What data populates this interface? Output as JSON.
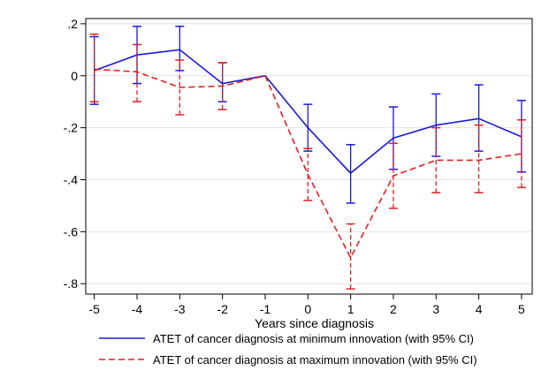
{
  "chart_data": {
    "type": "line",
    "title": "",
    "xlabel": "Years since diagnosis",
    "ylabel": "",
    "x": [
      -5,
      -4,
      -3,
      -2,
      -1,
      0,
      1,
      2,
      3,
      4,
      5
    ],
    "x_tick_labels": [
      "-5",
      "-4",
      "-3",
      "-2",
      "-1",
      "0",
      "1",
      "2",
      "3",
      "4",
      "5"
    ],
    "y_ticks": [
      0.2,
      0,
      -0.2,
      -0.4,
      -0.6,
      -0.8
    ],
    "y_tick_labels": [
      ".2",
      "0",
      "-.2",
      "-.4",
      "-.6",
      "-.8"
    ],
    "ylim": [
      -0.84,
      0.22
    ],
    "xlim": [
      -5.2,
      5.25
    ],
    "grid": "horizontal",
    "legend_position": "bottom",
    "series": [
      {
        "name": "ATET of cancer diagnosis at minimum innovation (with 95% CI)",
        "color": "#1a1adb",
        "dash": "solid",
        "values": [
          0.02,
          0.08,
          0.1,
          -0.03,
          0.0,
          -0.2,
          -0.375,
          -0.24,
          -0.19,
          -0.165,
          -0.235
        ],
        "ci_low": [
          -0.11,
          -0.03,
          0.02,
          -0.1,
          0.0,
          -0.29,
          -0.49,
          -0.36,
          -0.31,
          -0.29,
          -0.37
        ],
        "ci_high": [
          0.15,
          0.19,
          0.19,
          0.05,
          0.0,
          -0.11,
          -0.265,
          -0.12,
          -0.07,
          -0.035,
          -0.095
        ]
      },
      {
        "name": "ATET of cancer diagnosis at maximum innovation (with 95% CI)",
        "color": "#e02020",
        "dash": "dashed",
        "values": [
          0.025,
          0.015,
          -0.045,
          -0.04,
          0.0,
          -0.38,
          -0.7,
          -0.385,
          -0.325,
          -0.325,
          -0.3
        ],
        "ci_low": [
          -0.1,
          -0.1,
          -0.15,
          -0.13,
          0.0,
          -0.48,
          -0.82,
          -0.51,
          -0.45,
          -0.45,
          -0.43
        ],
        "ci_high": [
          0.16,
          0.12,
          0.06,
          0.05,
          0.0,
          -0.28,
          -0.57,
          -0.26,
          -0.2,
          -0.19,
          -0.17
        ]
      }
    ]
  }
}
